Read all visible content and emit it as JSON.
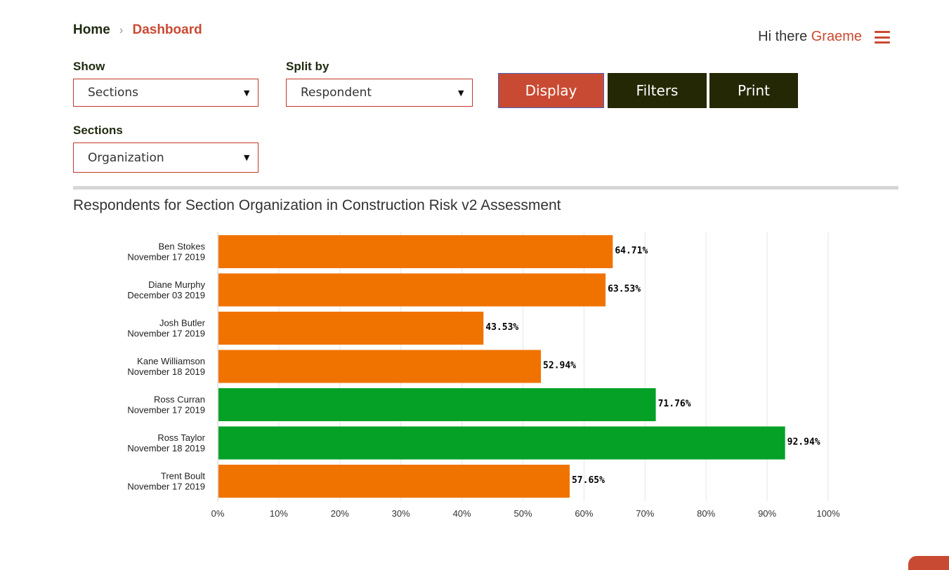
{
  "breadcrumb": {
    "home": "Home",
    "separator": "›",
    "current": "Dashboard"
  },
  "header": {
    "greeting": "Hi there",
    "user": "Graeme",
    "menu_icon": "hamburger-menu-icon"
  },
  "filters": {
    "show": {
      "label": "Show",
      "value": "Sections"
    },
    "split_by": {
      "label": "Split by",
      "value": "Respondent"
    },
    "sections": {
      "label": "Sections",
      "value": "Organization"
    }
  },
  "buttons": {
    "display": "Display",
    "filters": "Filters",
    "print": "Print"
  },
  "chart": {
    "title": "Respondents for Section Organization in Construction Risk v2 Assessment"
  },
  "colors": {
    "accent": "#c94a32",
    "dark_button": "#252804",
    "bar_orange": "#f07300",
    "bar_green": "#05a127"
  },
  "chart_data": {
    "type": "bar",
    "orientation": "horizontal",
    "categories": [
      {
        "name": "Ben Stokes",
        "date": "November 17 2019"
      },
      {
        "name": "Diane Murphy",
        "date": "December 03 2019"
      },
      {
        "name": "Josh Butler",
        "date": "November 17 2019"
      },
      {
        "name": "Kane Williamson",
        "date": "November 18 2019"
      },
      {
        "name": "Ross Curran",
        "date": "November 17 2019"
      },
      {
        "name": "Ross Taylor",
        "date": "November 18 2019"
      },
      {
        "name": "Trent Boult",
        "date": "November 17 2019"
      }
    ],
    "values": [
      64.71,
      63.53,
      43.53,
      52.94,
      71.76,
      92.94,
      57.65
    ],
    "value_labels": [
      "64.71%",
      "63.53%",
      "43.53%",
      "52.94%",
      "71.76%",
      "92.94%",
      "57.65%"
    ],
    "bar_colors": [
      "#f07300",
      "#f07300",
      "#f07300",
      "#f07300",
      "#05a127",
      "#05a127",
      "#f07300"
    ],
    "xlim": [
      0,
      100
    ],
    "x_ticks": [
      "0%",
      "10%",
      "20%",
      "30%",
      "40%",
      "50%",
      "60%",
      "70%",
      "80%",
      "90%",
      "100%"
    ],
    "grid": true
  }
}
